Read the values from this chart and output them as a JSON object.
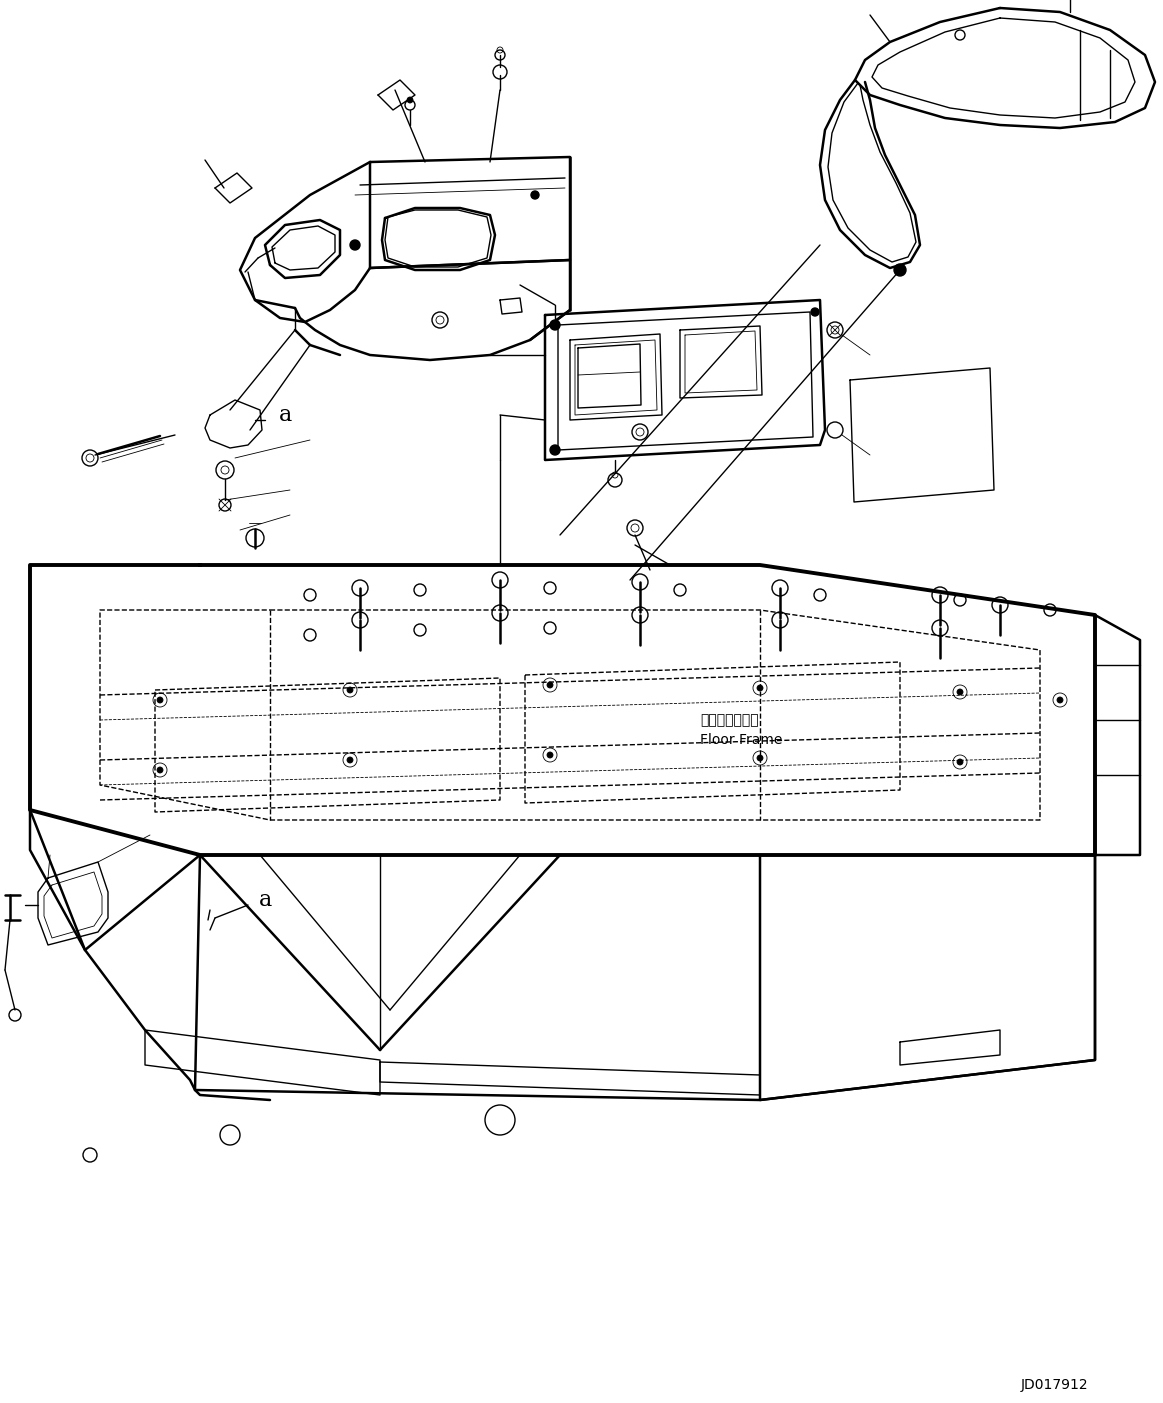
{
  "background_color": "#ffffff",
  "line_color": "#000000",
  "drawing_id": "JD017912",
  "floor_frame_jp": "フロアフレーム",
  "floor_frame_en": "Floor Frame",
  "figsize": [
    11.63,
    14.03
  ],
  "dpi": 100
}
